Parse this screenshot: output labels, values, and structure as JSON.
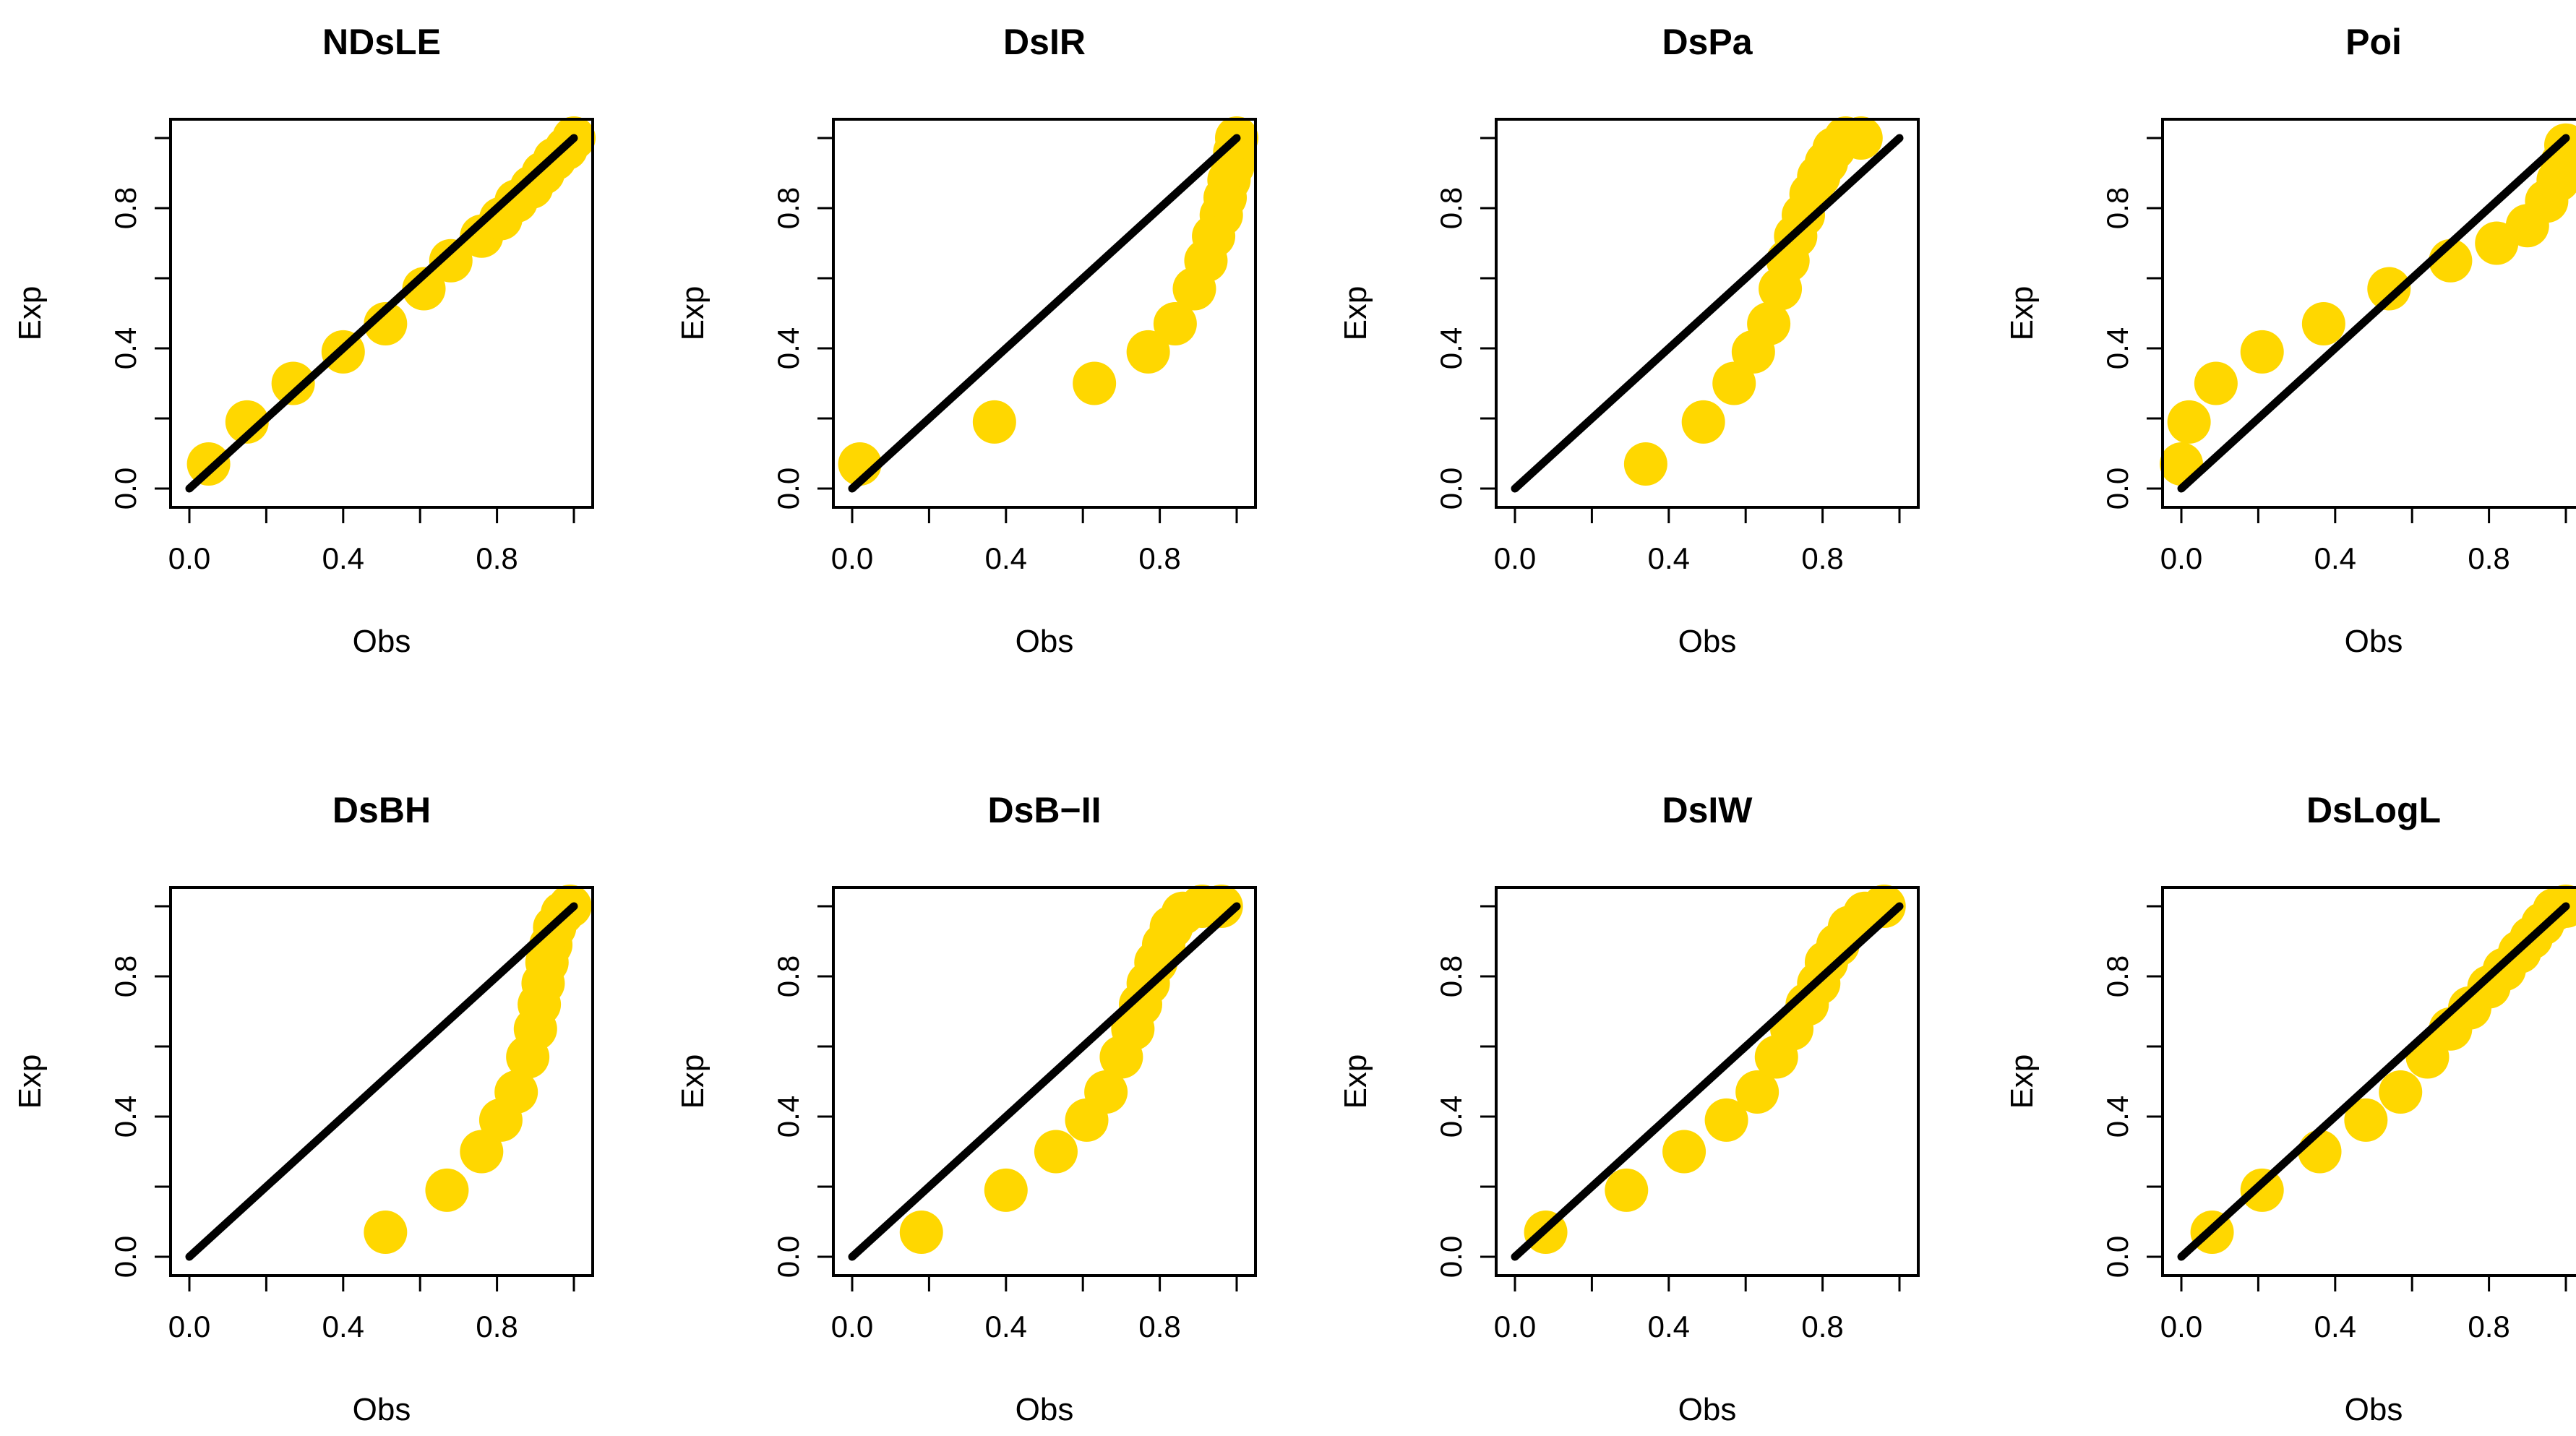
{
  "chart_data": [
    {
      "type": "scatter",
      "title": "NDsLE",
      "xlabel": "Obs",
      "ylabel": "Exp",
      "xlim": [
        0,
        1
      ],
      "ylim": [
        0,
        1
      ],
      "xticks": [
        "0.0",
        "0.4",
        "0.8"
      ],
      "yticks": [
        "0.0",
        "0.4",
        "0.8"
      ],
      "reference_line": "y = x",
      "point_color": "#FFD700",
      "line_color": "#000000",
      "points": [
        {
          "x": 0.05,
          "y": 0.07
        },
        {
          "x": 0.15,
          "y": 0.19
        },
        {
          "x": 0.27,
          "y": 0.3
        },
        {
          "x": 0.4,
          "y": 0.39
        },
        {
          "x": 0.51,
          "y": 0.47
        },
        {
          "x": 0.61,
          "y": 0.57
        },
        {
          "x": 0.68,
          "y": 0.65
        },
        {
          "x": 0.76,
          "y": 0.72
        },
        {
          "x": 0.81,
          "y": 0.77
        },
        {
          "x": 0.85,
          "y": 0.82
        },
        {
          "x": 0.89,
          "y": 0.86
        },
        {
          "x": 0.92,
          "y": 0.9
        },
        {
          "x": 0.95,
          "y": 0.94
        },
        {
          "x": 0.98,
          "y": 0.97
        },
        {
          "x": 1.0,
          "y": 1.0
        }
      ]
    },
    {
      "type": "scatter",
      "title": "DsIR",
      "xlabel": "Obs",
      "ylabel": "Exp",
      "xlim": [
        0,
        1
      ],
      "ylim": [
        0,
        1
      ],
      "xticks": [
        "0.0",
        "0.4",
        "0.8"
      ],
      "yticks": [
        "0.0",
        "0.4",
        "0.8"
      ],
      "reference_line": "y = x",
      "point_color": "#FFD700",
      "line_color": "#000000",
      "points": [
        {
          "x": 0.02,
          "y": 0.07
        },
        {
          "x": 0.37,
          "y": 0.19
        },
        {
          "x": 0.63,
          "y": 0.3
        },
        {
          "x": 0.77,
          "y": 0.39
        },
        {
          "x": 0.84,
          "y": 0.47
        },
        {
          "x": 0.89,
          "y": 0.57
        },
        {
          "x": 0.92,
          "y": 0.65
        },
        {
          "x": 0.94,
          "y": 0.72
        },
        {
          "x": 0.96,
          "y": 0.78
        },
        {
          "x": 0.97,
          "y": 0.83
        },
        {
          "x": 0.98,
          "y": 0.88
        },
        {
          "x": 0.99,
          "y": 0.92
        },
        {
          "x": 0.995,
          "y": 0.96
        },
        {
          "x": 1.0,
          "y": 1.0
        }
      ]
    },
    {
      "type": "scatter",
      "title": "DsPa",
      "xlabel": "Obs",
      "ylabel": "Exp",
      "xlim": [
        0,
        1
      ],
      "ylim": [
        0,
        1
      ],
      "xticks": [
        "0.0",
        "0.4",
        "0.8"
      ],
      "yticks": [
        "0.0",
        "0.4",
        "0.8"
      ],
      "reference_line": "y = x",
      "point_color": "#FFD700",
      "line_color": "#000000",
      "points": [
        {
          "x": 0.34,
          "y": 0.07
        },
        {
          "x": 0.49,
          "y": 0.19
        },
        {
          "x": 0.57,
          "y": 0.3
        },
        {
          "x": 0.62,
          "y": 0.39
        },
        {
          "x": 0.66,
          "y": 0.47
        },
        {
          "x": 0.69,
          "y": 0.57
        },
        {
          "x": 0.71,
          "y": 0.65
        },
        {
          "x": 0.73,
          "y": 0.72
        },
        {
          "x": 0.75,
          "y": 0.78
        },
        {
          "x": 0.77,
          "y": 0.84
        },
        {
          "x": 0.79,
          "y": 0.89
        },
        {
          "x": 0.81,
          "y": 0.93
        },
        {
          "x": 0.83,
          "y": 0.97
        },
        {
          "x": 0.86,
          "y": 1.0
        },
        {
          "x": 0.9,
          "y": 1.0
        }
      ]
    },
    {
      "type": "scatter",
      "title": "Poi",
      "xlabel": "Obs",
      "ylabel": "Exp",
      "xlim": [
        0,
        1
      ],
      "ylim": [
        0,
        1
      ],
      "xticks": [
        "0.0",
        "0.4",
        "0.8"
      ],
      "yticks": [
        "0.0",
        "0.4",
        "0.8"
      ],
      "reference_line": "y = x",
      "point_color": "#FFD700",
      "line_color": "#000000",
      "points": [
        {
          "x": 0.0,
          "y": 0.07
        },
        {
          "x": 0.02,
          "y": 0.19
        },
        {
          "x": 0.09,
          "y": 0.3
        },
        {
          "x": 0.21,
          "y": 0.39
        },
        {
          "x": 0.37,
          "y": 0.47
        },
        {
          "x": 0.54,
          "y": 0.57
        },
        {
          "x": 0.7,
          "y": 0.65
        },
        {
          "x": 0.82,
          "y": 0.7
        },
        {
          "x": 0.9,
          "y": 0.75
        },
        {
          "x": 0.95,
          "y": 0.82
        },
        {
          "x": 0.98,
          "y": 0.88
        },
        {
          "x": 0.99,
          "y": 0.93
        },
        {
          "x": 1.0,
          "y": 0.98
        }
      ]
    },
    {
      "type": "scatter",
      "title": "DsBH",
      "xlabel": "Obs",
      "ylabel": "Exp",
      "xlim": [
        0,
        1
      ],
      "ylim": [
        0,
        1
      ],
      "xticks": [
        "0.0",
        "0.4",
        "0.8"
      ],
      "yticks": [
        "0.0",
        "0.4",
        "0.8"
      ],
      "reference_line": "y = x",
      "point_color": "#FFD700",
      "line_color": "#000000",
      "points": [
        {
          "x": 0.51,
          "y": 0.07
        },
        {
          "x": 0.67,
          "y": 0.19
        },
        {
          "x": 0.76,
          "y": 0.3
        },
        {
          "x": 0.81,
          "y": 0.39
        },
        {
          "x": 0.85,
          "y": 0.47
        },
        {
          "x": 0.88,
          "y": 0.57
        },
        {
          "x": 0.9,
          "y": 0.65
        },
        {
          "x": 0.91,
          "y": 0.72
        },
        {
          "x": 0.92,
          "y": 0.78
        },
        {
          "x": 0.93,
          "y": 0.84
        },
        {
          "x": 0.94,
          "y": 0.89
        },
        {
          "x": 0.95,
          "y": 0.94
        },
        {
          "x": 0.97,
          "y": 0.98
        },
        {
          "x": 0.99,
          "y": 1.0
        }
      ]
    },
    {
      "type": "scatter",
      "title": "DsB−II",
      "xlabel": "Obs",
      "ylabel": "Exp",
      "xlim": [
        0,
        1
      ],
      "ylim": [
        0,
        1
      ],
      "xticks": [
        "0.0",
        "0.4",
        "0.8"
      ],
      "yticks": [
        "0.0",
        "0.4",
        "0.8"
      ],
      "reference_line": "y = x",
      "point_color": "#FFD700",
      "line_color": "#000000",
      "points": [
        {
          "x": 0.18,
          "y": 0.07
        },
        {
          "x": 0.4,
          "y": 0.19
        },
        {
          "x": 0.53,
          "y": 0.3
        },
        {
          "x": 0.61,
          "y": 0.39
        },
        {
          "x": 0.66,
          "y": 0.47
        },
        {
          "x": 0.7,
          "y": 0.57
        },
        {
          "x": 0.73,
          "y": 0.65
        },
        {
          "x": 0.75,
          "y": 0.72
        },
        {
          "x": 0.77,
          "y": 0.78
        },
        {
          "x": 0.79,
          "y": 0.84
        },
        {
          "x": 0.81,
          "y": 0.89
        },
        {
          "x": 0.83,
          "y": 0.94
        },
        {
          "x": 0.86,
          "y": 0.98
        },
        {
          "x": 0.91,
          "y": 1.0
        },
        {
          "x": 0.96,
          "y": 1.0
        }
      ]
    },
    {
      "type": "scatter",
      "title": "DsIW",
      "xlabel": "Obs",
      "ylabel": "Exp",
      "xlim": [
        0,
        1
      ],
      "ylim": [
        0,
        1
      ],
      "xticks": [
        "0.0",
        "0.4",
        "0.8"
      ],
      "yticks": [
        "0.0",
        "0.4",
        "0.8"
      ],
      "reference_line": "y = x",
      "point_color": "#FFD700",
      "line_color": "#000000",
      "points": [
        {
          "x": 0.08,
          "y": 0.07
        },
        {
          "x": 0.29,
          "y": 0.19
        },
        {
          "x": 0.44,
          "y": 0.3
        },
        {
          "x": 0.55,
          "y": 0.39
        },
        {
          "x": 0.63,
          "y": 0.47
        },
        {
          "x": 0.68,
          "y": 0.57
        },
        {
          "x": 0.72,
          "y": 0.65
        },
        {
          "x": 0.76,
          "y": 0.72
        },
        {
          "x": 0.79,
          "y": 0.78
        },
        {
          "x": 0.81,
          "y": 0.84
        },
        {
          "x": 0.84,
          "y": 0.89
        },
        {
          "x": 0.87,
          "y": 0.94
        },
        {
          "x": 0.91,
          "y": 0.98
        },
        {
          "x": 0.96,
          "y": 1.0
        }
      ]
    },
    {
      "type": "scatter",
      "title": "DsLogL",
      "xlabel": "Obs",
      "ylabel": "Exp",
      "xlim": [
        0,
        1
      ],
      "ylim": [
        0,
        1
      ],
      "xticks": [
        "0.0",
        "0.4",
        "0.8"
      ],
      "yticks": [
        "0.0",
        "0.4",
        "0.8"
      ],
      "reference_line": "y = x",
      "point_color": "#FFD700",
      "line_color": "#000000",
      "points": [
        {
          "x": 0.08,
          "y": 0.07
        },
        {
          "x": 0.21,
          "y": 0.19
        },
        {
          "x": 0.36,
          "y": 0.3
        },
        {
          "x": 0.48,
          "y": 0.39
        },
        {
          "x": 0.57,
          "y": 0.47
        },
        {
          "x": 0.64,
          "y": 0.57
        },
        {
          "x": 0.7,
          "y": 0.65
        },
        {
          "x": 0.75,
          "y": 0.71
        },
        {
          "x": 0.8,
          "y": 0.77
        },
        {
          "x": 0.84,
          "y": 0.82
        },
        {
          "x": 0.88,
          "y": 0.87
        },
        {
          "x": 0.91,
          "y": 0.91
        },
        {
          "x": 0.94,
          "y": 0.95
        },
        {
          "x": 0.97,
          "y": 0.99
        },
        {
          "x": 1.0,
          "y": 1.0
        }
      ]
    }
  ]
}
